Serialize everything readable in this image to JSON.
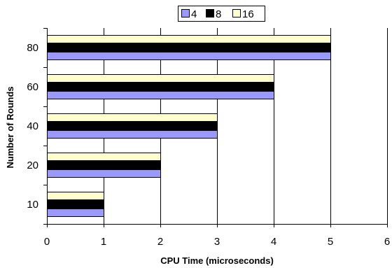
{
  "chart_data": {
    "type": "bar",
    "orientation": "horizontal",
    "categories": [
      "10",
      "20",
      "40",
      "60",
      "80"
    ],
    "series": [
      {
        "name": "4",
        "values": [
          1,
          2,
          3,
          4,
          5
        ],
        "color": "#9999ff"
      },
      {
        "name": "8",
        "values": [
          1,
          2,
          3,
          4,
          5
        ],
        "color": "#000000"
      },
      {
        "name": "16",
        "values": [
          1,
          2,
          3,
          4,
          5
        ],
        "color": "#ffffcc"
      }
    ],
    "title": "",
    "xlabel": "CPU Time (microseconds)",
    "ylabel": "Number of Rounds",
    "xlim": [
      0,
      6
    ],
    "xticks": [
      "0",
      "1",
      "2",
      "3",
      "4",
      "5",
      "6"
    ],
    "grid": "vertical",
    "legend_position": "top"
  }
}
